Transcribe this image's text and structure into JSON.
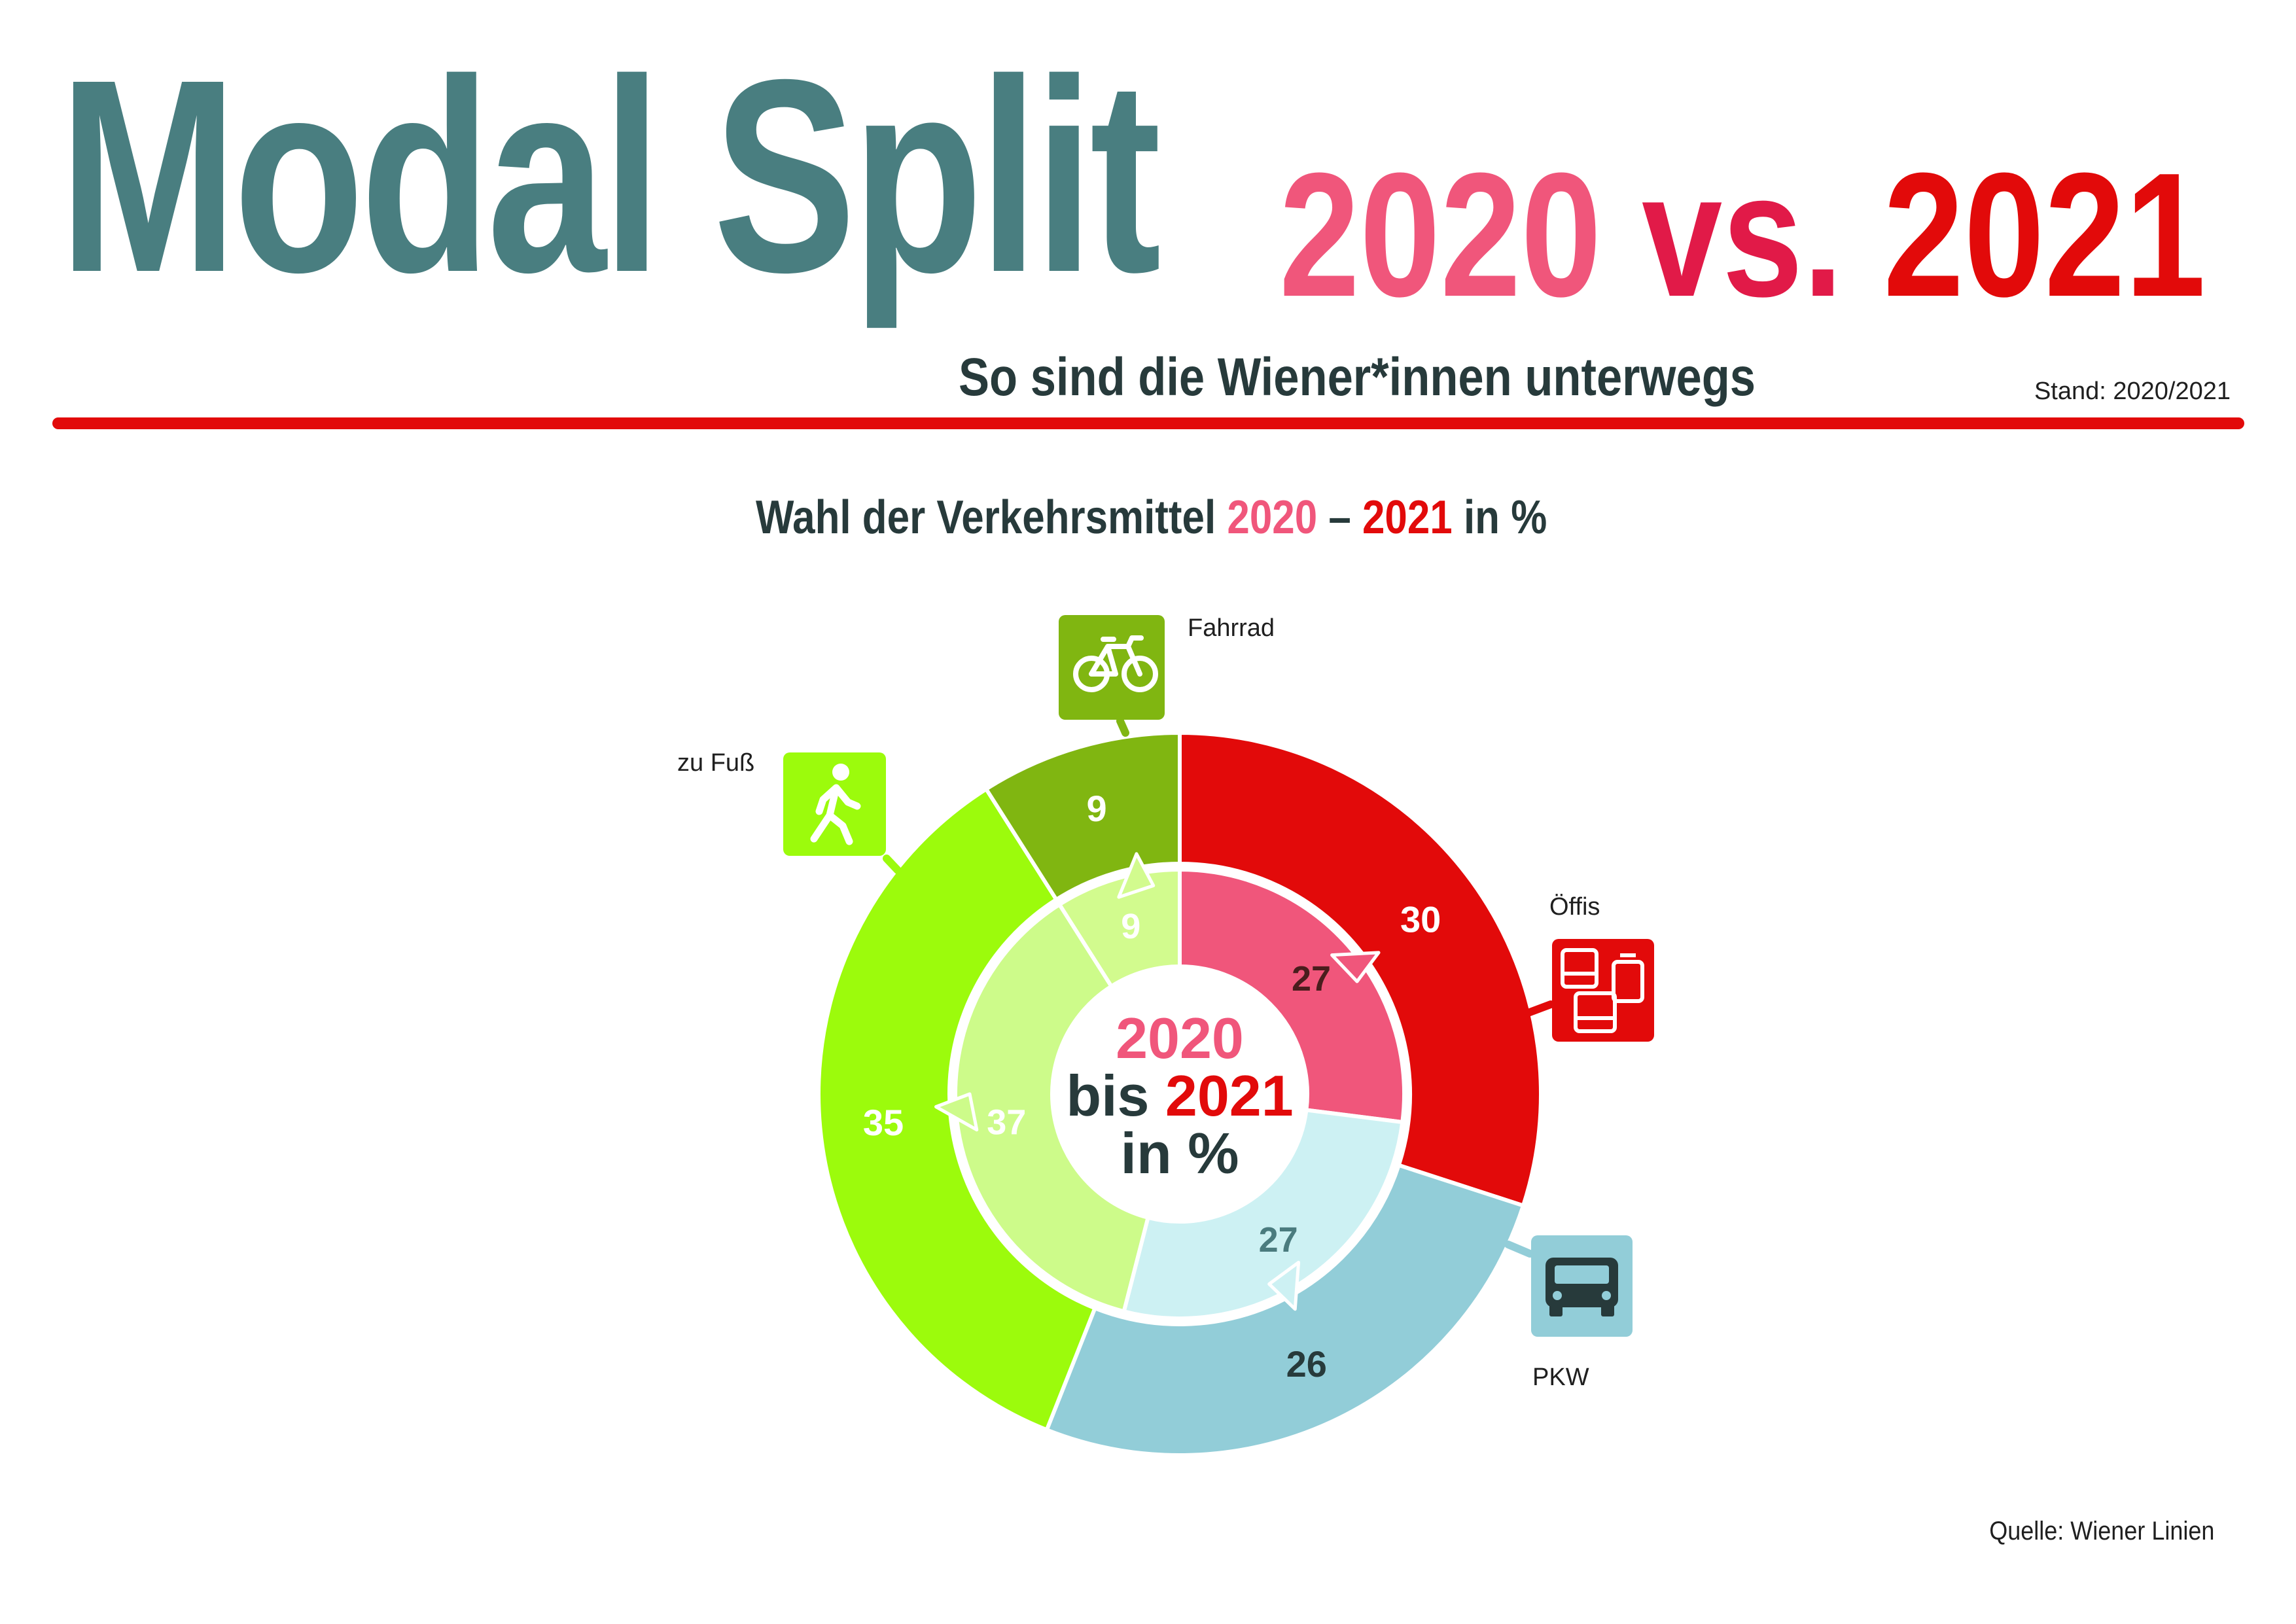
{
  "header": {
    "title": "Modal Split",
    "year_2020": "2020",
    "vs": "vs.",
    "year_2021": "2021",
    "subtitle": "So sind die Wiener*innen unterwegs",
    "stand": "Stand: 2020/2021"
  },
  "chart_title": {
    "prefix": "Wahl der Verkehrsmittel",
    "year_2020": "2020",
    "dash": "–",
    "year_2021": "2021",
    "suffix": "in %"
  },
  "center_label": {
    "line1": "2020",
    "bis": "bis",
    "year": "2021",
    "line3": "in %"
  },
  "source": "Quelle: Wiener Linien",
  "colors": {
    "teal_title": "#497e80",
    "pink_2020": "#f0567b",
    "red_2021": "#e20a0a",
    "dark_text": "#273a3b"
  },
  "chart_data": {
    "type": "donut",
    "categories": [
      "Öffis",
      "PKW",
      "zu Fuß",
      "Fahrrad"
    ],
    "series": [
      {
        "name": "2020",
        "ring": "inner",
        "values": [
          27,
          27,
          37,
          9
        ],
        "colors": [
          "#f0567b",
          "#cdf1f3",
          "#cdfb8a",
          "#d2fb8e"
        ],
        "label_colors": [
          "#4a1d1d",
          "#4a7b7e",
          "#ffffff",
          "#ffffff"
        ]
      },
      {
        "name": "2021",
        "ring": "outer",
        "values": [
          30,
          26,
          35,
          9
        ],
        "colors": [
          "#e20a0a",
          "#92cdd8",
          "#9cfb0c",
          "#80b611"
        ],
        "label_colors": [
          "#ffffff",
          "#273a3b",
          "#ffffff",
          "#ffffff"
        ]
      }
    ],
    "icons": [
      {
        "category": "Fahrrad",
        "label": "Fahrrad",
        "icon": "bicycle-icon",
        "color": "#80b611"
      },
      {
        "category": "zu Fuß",
        "label": "zu Fuß",
        "icon": "pedestrian-icon",
        "color": "#9cfb0c"
      },
      {
        "category": "Öffis",
        "label": "Öffis",
        "icon": "public-transport-icon",
        "color": "#e20a0a"
      },
      {
        "category": "PKW",
        "label": "PKW",
        "icon": "car-icon",
        "color": "#92cdd8"
      }
    ]
  }
}
